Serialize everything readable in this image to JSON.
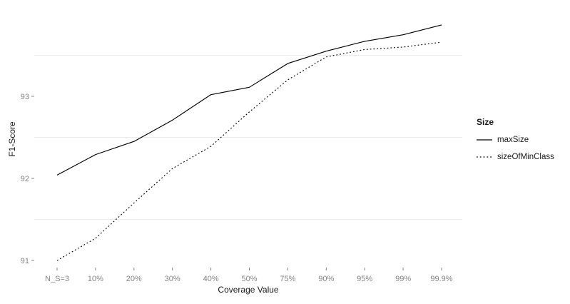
{
  "colors": {
    "line": "#000000",
    "grid_minor": "#ececec",
    "axis_text": "#848484",
    "tick_mark": "#848484",
    "title_text": "#1a1a1a",
    "background": "#ffffff"
  },
  "chart_data": {
    "type": "line",
    "title": "",
    "xlabel": "Coverage Value",
    "ylabel": "F1-Score",
    "categories": [
      "N_S=3",
      "10%",
      "20%",
      "30%",
      "40%",
      "50%",
      "75%",
      "90%",
      "95%",
      "99%",
      "99.9%"
    ],
    "y_ticks": [
      91,
      92,
      93
    ],
    "y_minor_gridlines": [
      91.5,
      92.5,
      93.5
    ],
    "ylim": [
      90.913,
      94.043
    ],
    "grid": "horizontal-minor-only",
    "legend": {
      "title": "Size",
      "position": "right"
    },
    "series": [
      {
        "name": "maxSize",
        "linetype": "solid",
        "color": "#000000",
        "values": [
          92.04,
          92.29,
          92.45,
          92.71,
          93.02,
          93.11,
          93.4,
          93.55,
          93.67,
          93.75,
          93.87
        ]
      },
      {
        "name": "sizeOfMinClass",
        "linetype": "dotted",
        "color": "#000000",
        "values": [
          91.0,
          91.27,
          91.7,
          92.12,
          92.39,
          92.81,
          93.2,
          93.48,
          93.57,
          93.6,
          93.66
        ]
      }
    ]
  }
}
